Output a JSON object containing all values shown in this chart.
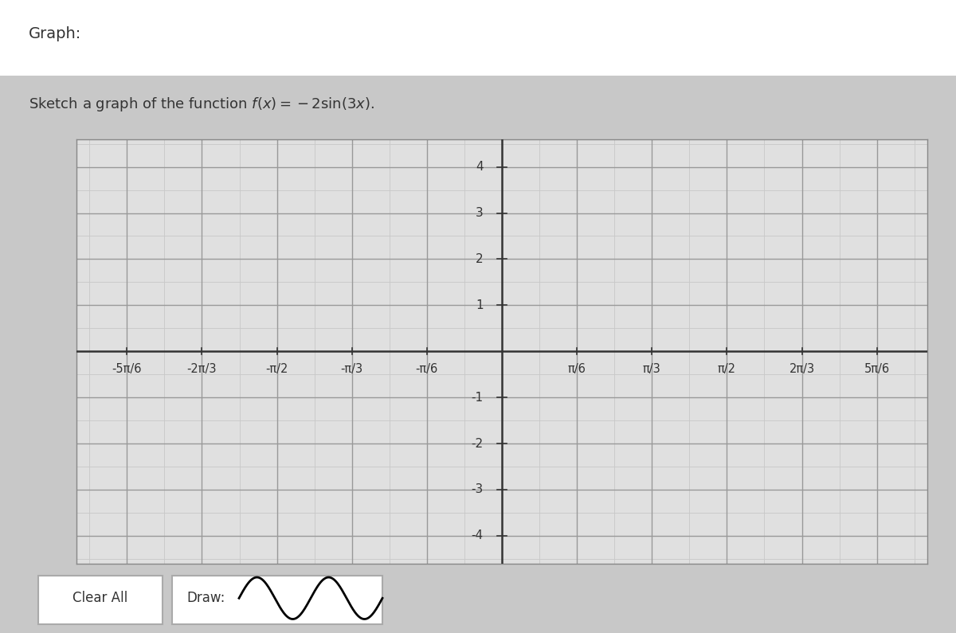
{
  "title_top": "Graph:",
  "subtitle": "Sketch a graph of the function $f(x) = -2\\sin(3x)$.",
  "xlim": [
    -2.97,
    2.97
  ],
  "ylim": [
    -4.6,
    4.6
  ],
  "yticks": [
    -4,
    -3,
    -2,
    -1,
    1,
    2,
    3,
    4
  ],
  "xtick_values": [
    -2.617994,
    -2.094395,
    -1.570796,
    -1.047198,
    -0.523599,
    0.523599,
    1.047198,
    1.570796,
    2.094395,
    2.617994
  ],
  "xtick_labels": [
    "-5π/6",
    "-2π/3",
    "-π/2",
    "-π/3",
    "-π/6",
    "π/6",
    "π/3",
    "π/2",
    "2π/3",
    "5π/6"
  ],
  "grid_minor_color": "#c8c8c8",
  "grid_major_color": "#999999",
  "background_color": "#e0e0e0",
  "axes_color": "#333333",
  "font_color": "#333333",
  "figure_bg": "#c8c8c8",
  "plot_border_color": "#888888"
}
